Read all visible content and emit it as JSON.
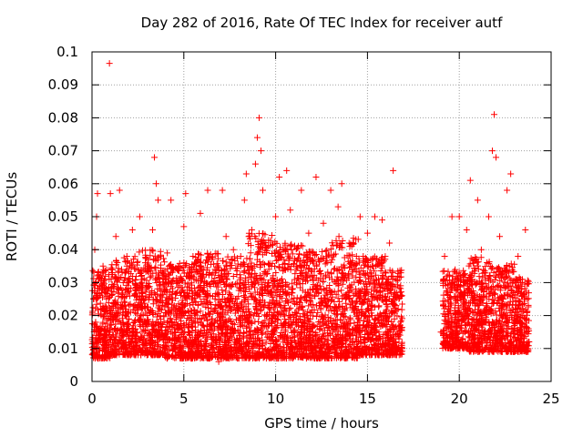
{
  "chart_data": {
    "type": "scatter",
    "title": "Day 282 of 2016, Rate Of TEC Index for receiver autf",
    "xlabel": "GPS time / hours",
    "ylabel": "ROTI / TECUs",
    "xlim": [
      0,
      25
    ],
    "ylim": [
      0,
      0.1
    ],
    "xticks": [
      0,
      5,
      10,
      15,
      20,
      25
    ],
    "xtick_labels": [
      "0",
      "5",
      "10",
      "15",
      "20",
      "25"
    ],
    "yticks": [
      0,
      0.01,
      0.02,
      0.03,
      0.04,
      0.05,
      0.06,
      0.07,
      0.08,
      0.09,
      0.1
    ],
    "ytick_labels": [
      "0",
      "0.01",
      "0.02",
      "0.03",
      "0.04",
      "0.05",
      "0.06",
      "0.07",
      "0.08",
      "0.09",
      "0.1"
    ],
    "grid": true,
    "marker": "+",
    "color": "#ff0000",
    "data_gap_hours": [
      17.0,
      19.0
    ],
    "series": [
      {
        "name": "ROTI",
        "points": [
          [
            0.05,
            0.012
          ],
          [
            0.1,
            0.025
          ],
          [
            0.15,
            0.04
          ],
          [
            0.2,
            0.018
          ],
          [
            0.25,
            0.05
          ],
          [
            0.3,
            0.057
          ],
          [
            0.35,
            0.031
          ],
          [
            0.4,
            0.008
          ],
          [
            0.5,
            0.022
          ],
          [
            0.6,
            0.035
          ],
          [
            0.7,
            0.014
          ],
          [
            0.8,
            0.028
          ],
          [
            0.9,
            0.019
          ],
          [
            0.95,
            0.0965
          ],
          [
            1.0,
            0.057
          ],
          [
            1.1,
            0.033
          ],
          [
            1.2,
            0.011
          ],
          [
            1.3,
            0.044
          ],
          [
            1.4,
            0.024
          ],
          [
            1.5,
            0.058
          ],
          [
            1.6,
            0.016
          ],
          [
            1.7,
            0.03
          ],
          [
            1.8,
            0.009
          ],
          [
            1.9,
            0.038
          ],
          [
            2.0,
            0.021
          ],
          [
            2.2,
            0.046
          ],
          [
            2.4,
            0.013
          ],
          [
            2.6,
            0.05
          ],
          [
            2.7,
            0.027
          ],
          [
            2.9,
            0.036
          ],
          [
            3.1,
            0.018
          ],
          [
            3.3,
            0.046
          ],
          [
            3.4,
            0.068
          ],
          [
            3.5,
            0.06
          ],
          [
            3.6,
            0.055
          ],
          [
            3.7,
            0.022
          ],
          [
            3.9,
            0.011
          ],
          [
            4.1,
            0.039
          ],
          [
            4.3,
            0.055
          ],
          [
            4.5,
            0.015
          ],
          [
            4.7,
            0.03
          ],
          [
            4.9,
            0.008
          ],
          [
            5.0,
            0.047
          ],
          [
            5.1,
            0.057
          ],
          [
            5.3,
            0.02
          ],
          [
            5.5,
            0.038
          ],
          [
            5.7,
            0.012
          ],
          [
            5.9,
            0.051
          ],
          [
            6.1,
            0.025
          ],
          [
            6.3,
            0.058
          ],
          [
            6.5,
            0.017
          ],
          [
            6.7,
            0.034
          ],
          [
            6.9,
            0.006
          ],
          [
            7.1,
            0.058
          ],
          [
            7.3,
            0.044
          ],
          [
            7.5,
            0.019
          ],
          [
            7.7,
            0.04
          ],
          [
            7.9,
            0.013
          ],
          [
            8.1,
            0.035
          ],
          [
            8.3,
            0.055
          ],
          [
            8.4,
            0.063
          ],
          [
            8.5,
            0.022
          ],
          [
            8.7,
            0.046
          ],
          [
            8.9,
            0.066
          ],
          [
            9.0,
            0.074
          ],
          [
            9.1,
            0.08
          ],
          [
            9.2,
            0.07
          ],
          [
            9.3,
            0.058
          ],
          [
            9.4,
            0.024
          ],
          [
            9.6,
            0.041
          ],
          [
            9.8,
            0.015
          ],
          [
            10.0,
            0.05
          ],
          [
            10.2,
            0.062
          ],
          [
            10.4,
            0.03
          ],
          [
            10.6,
            0.064
          ],
          [
            10.8,
            0.052
          ],
          [
            11.0,
            0.018
          ],
          [
            11.2,
            0.037
          ],
          [
            11.4,
            0.058
          ],
          [
            11.6,
            0.01
          ],
          [
            11.8,
            0.045
          ],
          [
            12.0,
            0.028
          ],
          [
            12.2,
            0.062
          ],
          [
            12.4,
            0.016
          ],
          [
            12.6,
            0.048
          ],
          [
            12.8,
            0.036
          ],
          [
            13.0,
            0.058
          ],
          [
            13.2,
            0.012
          ],
          [
            13.4,
            0.053
          ],
          [
            13.6,
            0.06
          ],
          [
            13.8,
            0.026
          ],
          [
            14.0,
            0.042
          ],
          [
            14.2,
            0.008
          ],
          [
            14.4,
            0.038
          ],
          [
            14.6,
            0.05
          ],
          [
            14.8,
            0.02
          ],
          [
            15.0,
            0.045
          ],
          [
            15.2,
            0.015
          ],
          [
            15.4,
            0.05
          ],
          [
            15.6,
            0.031
          ],
          [
            15.8,
            0.049
          ],
          [
            16.0,
            0.011
          ],
          [
            16.2,
            0.042
          ],
          [
            16.4,
            0.064
          ],
          [
            16.6,
            0.027
          ],
          [
            16.8,
            0.018
          ],
          [
            19.0,
            0.015
          ],
          [
            19.2,
            0.038
          ],
          [
            19.4,
            0.022
          ],
          [
            19.6,
            0.05
          ],
          [
            19.8,
            0.012
          ],
          [
            20.0,
            0.05
          ],
          [
            20.2,
            0.032
          ],
          [
            20.4,
            0.046
          ],
          [
            20.6,
            0.061
          ],
          [
            20.8,
            0.019
          ],
          [
            21.0,
            0.055
          ],
          [
            21.2,
            0.04
          ],
          [
            21.4,
            0.013
          ],
          [
            21.6,
            0.05
          ],
          [
            21.8,
            0.07
          ],
          [
            21.9,
            0.081
          ],
          [
            22.0,
            0.068
          ],
          [
            22.2,
            0.044
          ],
          [
            22.4,
            0.025
          ],
          [
            22.6,
            0.058
          ],
          [
            22.8,
            0.063
          ],
          [
            23.0,
            0.017
          ],
          [
            23.2,
            0.038
          ],
          [
            23.4,
            0.028
          ],
          [
            23.6,
            0.046
          ],
          [
            23.8,
            0.012
          ]
        ]
      }
    ],
    "density_bands": [
      [
        0.0,
        1.0,
        0.007,
        0.034
      ],
      [
        1.0,
        2.5,
        0.008,
        0.038
      ],
      [
        2.5,
        4.0,
        0.008,
        0.04
      ],
      [
        4.0,
        5.5,
        0.007,
        0.036
      ],
      [
        5.5,
        7.0,
        0.007,
        0.039
      ],
      [
        7.0,
        8.5,
        0.007,
        0.038
      ],
      [
        8.5,
        10.0,
        0.007,
        0.045
      ],
      [
        10.0,
        11.5,
        0.007,
        0.042
      ],
      [
        11.5,
        13.0,
        0.007,
        0.04
      ],
      [
        13.0,
        14.5,
        0.007,
        0.044
      ],
      [
        14.5,
        16.0,
        0.008,
        0.038
      ],
      [
        16.0,
        16.9,
        0.008,
        0.034
      ],
      [
        19.1,
        20.5,
        0.01,
        0.034
      ],
      [
        20.5,
        22.0,
        0.009,
        0.038
      ],
      [
        22.0,
        23.0,
        0.009,
        0.036
      ],
      [
        23.0,
        23.8,
        0.009,
        0.032
      ]
    ]
  }
}
